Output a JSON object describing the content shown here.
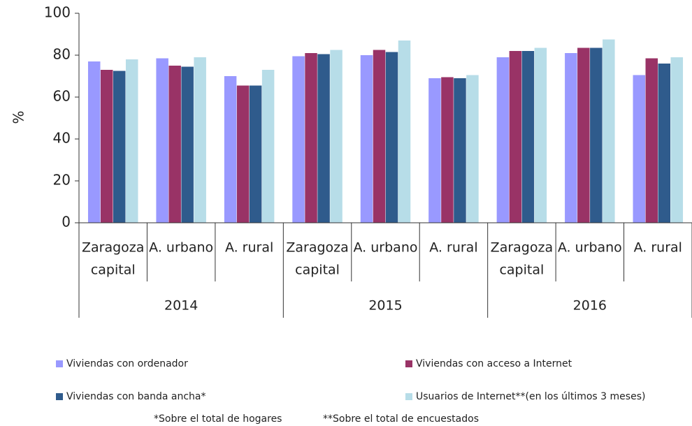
{
  "chart_data": {
    "type": "bar",
    "categories": [
      [
        "Zaragoza",
        "capital"
      ],
      [
        "A. urbano"
      ],
      [
        "A. rural"
      ],
      [
        "Zaragoza",
        "capital"
      ],
      [
        "A. urbano"
      ],
      [
        "A. rural"
      ],
      [
        "Zaragoza",
        "capital"
      ],
      [
        "A. urbano"
      ],
      [
        "A. rural"
      ]
    ],
    "groups": [
      "2014",
      "2015",
      "2016"
    ],
    "ylabel": "%",
    "ylim": [
      0,
      100
    ],
    "yticks": [
      0,
      20,
      40,
      60,
      80,
      100
    ],
    "series": [
      {
        "name": "Viviendas con ordenador",
        "color": "#9999ff",
        "values": [
          77,
          78.5,
          70,
          79.5,
          80,
          69,
          79,
          81,
          70.5
        ]
      },
      {
        "name": "Viviendas con acceso a Internet",
        "color": "#993366",
        "values": [
          73,
          75,
          65.5,
          81,
          82.5,
          69.5,
          82,
          83.5,
          78.5
        ]
      },
      {
        "name": "Viviendas con banda ancha*",
        "color": "#2f5b8c",
        "values": [
          72.5,
          74.5,
          65.5,
          80.5,
          81.5,
          69,
          82,
          83.5,
          76
        ]
      },
      {
        "name": "Usuarios de Internet**(en los últimos 3 meses)",
        "color": "#b7dde8",
        "values": [
          78,
          79,
          73,
          82.5,
          87,
          70.5,
          83.5,
          87.5,
          79
        ]
      }
    ],
    "notes": [
      "*Sobre el total de hogares",
      "**Sobre el total de encuestados"
    ]
  }
}
